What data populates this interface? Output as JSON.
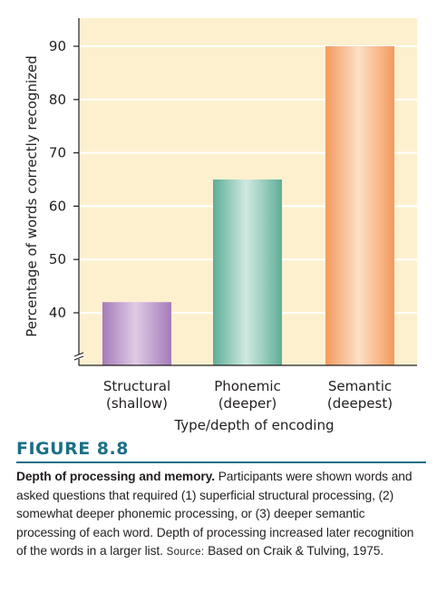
{
  "chart_data": {
    "type": "bar",
    "categories": [
      "Structural\n(shallow)",
      "Phonemic\n(deeper)",
      "Semantic\n(deepest)"
    ],
    "values": [
      42,
      65,
      90
    ],
    "xlabel": "Type/depth of encoding",
    "ylabel": "Percentage of words correctly recognized",
    "yticks": [
      40,
      50,
      60,
      70,
      80,
      90
    ],
    "ylim": [
      33,
      97
    ],
    "axis_break": true,
    "grid": true,
    "colors": {
      "background": "#fdf0cf",
      "gridline": "#ffffff",
      "bars": [
        "#a57bb8",
        "#5fae98",
        "#f39a5c"
      ],
      "bar_highlights": [
        "#dfcbe6",
        "#cfeae0",
        "#fde0c6"
      ]
    }
  },
  "figure": {
    "label": "FIGURE 8.8",
    "caption_title": "Depth of processing and memory.",
    "caption_body": " Participants were shown words and asked questions that required (1) superficial structural processing, (2) somewhat deeper phonemic processing, or (3) deeper semantic processing of each word. Depth of processing increased later recognition of the words in a larger list. ",
    "source_label": "Source:",
    "source_text": " Based on Craik & Tulving, 1975.",
    "accent_color": "#1b6f86"
  }
}
